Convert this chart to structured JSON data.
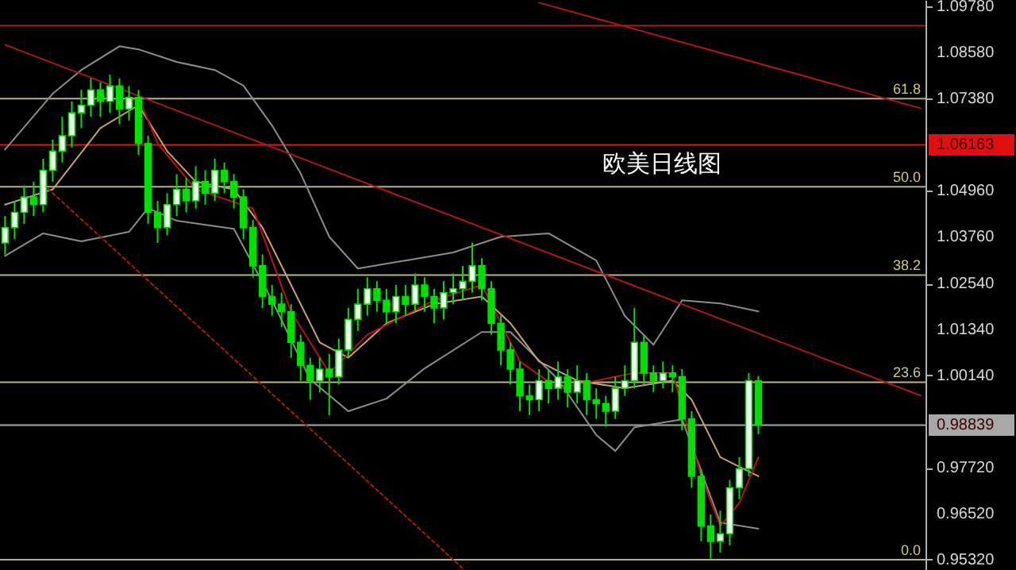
{
  "chart_data": {
    "type": "candlestick",
    "title": "欧美日线图",
    "color": "#00e000",
    "tick_labels": "y",
    "categories": [
      null,
      null,
      null,
      null,
      null,
      null,
      null,
      null,
      null,
      null,
      null,
      null,
      null,
      null,
      null,
      null,
      null,
      null,
      null,
      null,
      null,
      null,
      null,
      null,
      null,
      null,
      null,
      null,
      null,
      null,
      null,
      null,
      null,
      null,
      null,
      null,
      null,
      null,
      null,
      null,
      null,
      null,
      null,
      null,
      null,
      null,
      null,
      null,
      null,
      null,
      null,
      null,
      null,
      null,
      null,
      null,
      null,
      null,
      null,
      null,
      null,
      null,
      null,
      null,
      null,
      null,
      null,
      null,
      null,
      null,
      null,
      null,
      null,
      null,
      null,
      null,
      null,
      null,
      null,
      null,
      null,
      null,
      null,
      null,
      null,
      null,
      null,
      null,
      null,
      null,
      null,
      null,
      null,
      null,
      null,
      null,
      null
    ],
    "ohlc": [
      [
        1.036,
        1.043,
        1.033,
        1.04
      ],
      [
        1.04,
        1.047,
        1.037,
        1.044
      ],
      [
        1.044,
        1.051,
        1.041,
        1.048
      ],
      [
        1.048,
        1.052,
        1.043,
        1.046
      ],
      [
        1.046,
        1.058,
        1.044,
        1.055
      ],
      [
        1.055,
        1.063,
        1.052,
        1.06
      ],
      [
        1.06,
        1.069,
        1.057,
        1.064
      ],
      [
        1.064,
        1.073,
        1.061,
        1.07
      ],
      [
        1.07,
        1.076,
        1.066,
        1.072
      ],
      [
        1.072,
        1.079,
        1.069,
        1.076
      ],
      [
        1.076,
        1.078,
        1.069,
        1.073
      ],
      [
        1.073,
        1.08,
        1.07,
        1.077
      ],
      [
        1.077,
        1.079,
        1.067,
        1.071
      ],
      [
        1.071,
        1.077,
        1.068,
        1.074
      ],
      [
        1.074,
        1.076,
        1.059,
        1.062
      ],
      [
        1.062,
        1.064,
        1.041,
        1.044
      ],
      [
        1.044,
        1.047,
        1.036,
        1.04
      ],
      [
        1.04,
        1.049,
        1.038,
        1.046
      ],
      [
        1.046,
        1.054,
        1.043,
        1.05
      ],
      [
        1.05,
        1.053,
        1.044,
        1.047
      ],
      [
        1.047,
        1.056,
        1.045,
        1.052
      ],
      [
        1.052,
        1.055,
        1.046,
        1.049
      ],
      [
        1.049,
        1.058,
        1.047,
        1.055
      ],
      [
        1.055,
        1.057,
        1.049,
        1.052
      ],
      [
        1.052,
        1.054,
        1.045,
        1.048
      ],
      [
        1.048,
        1.05,
        1.037,
        1.04
      ],
      [
        1.04,
        1.042,
        1.027,
        1.03
      ],
      [
        1.03,
        1.033,
        1.019,
        1.022
      ],
      [
        1.022,
        1.025,
        1.017,
        1.02
      ],
      [
        1.02,
        1.023,
        1.014,
        1.018
      ],
      [
        1.018,
        1.02,
        1.006,
        1.01
      ],
      [
        1.01,
        1.012,
        1.0,
        1.004
      ],
      [
        1.004,
        1.006,
        0.995,
        1.0
      ],
      [
        1.0,
        1.006,
        0.997,
        1.003
      ],
      [
        1.003,
        1.007,
        0.991,
        1.001
      ],
      [
        1.001,
        1.011,
        0.999,
        1.008
      ],
      [
        1.008,
        1.019,
        1.006,
        1.016
      ],
      [
        1.016,
        1.024,
        1.013,
        1.02
      ],
      [
        1.02,
        1.027,
        1.017,
        1.024
      ],
      [
        1.024,
        1.026,
        1.018,
        1.021
      ],
      [
        1.021,
        1.024,
        1.015,
        1.018
      ],
      [
        1.018,
        1.025,
        1.015,
        1.022
      ],
      [
        1.022,
        1.025,
        1.017,
        1.02
      ],
      [
        1.02,
        1.028,
        1.018,
        1.025
      ],
      [
        1.025,
        1.027,
        1.018,
        1.022
      ],
      [
        1.022,
        1.024,
        1.015,
        1.019
      ],
      [
        1.019,
        1.026,
        1.016,
        1.023
      ],
      [
        1.023,
        1.028,
        1.02,
        1.024
      ],
      [
        1.024,
        1.03,
        1.021,
        1.026
      ],
      [
        1.026,
        1.036,
        1.023,
        1.03
      ],
      [
        1.03,
        1.032,
        1.021,
        1.024
      ],
      [
        1.024,
        1.026,
        1.012,
        1.015
      ],
      [
        1.015,
        1.017,
        1.004,
        1.008
      ],
      [
        1.008,
        1.01,
        0.999,
        1.003
      ],
      [
        1.003,
        1.005,
        0.992,
        0.996
      ],
      [
        0.996,
        0.999,
        0.991,
        0.995
      ],
      [
        0.995,
        1.003,
        0.992,
        1.0
      ],
      [
        1.0,
        1.003,
        0.994,
        0.998
      ],
      [
        0.998,
        1.005,
        0.995,
        1.001
      ],
      [
        1.001,
        1.003,
        0.993,
        0.997
      ],
      [
        0.997,
        1.004,
        0.994,
        1.0
      ],
      [
        1.0,
        1.002,
        0.991,
        0.995
      ],
      [
        0.995,
        0.998,
        0.99,
        0.994
      ],
      [
        0.994,
        0.996,
        0.988,
        0.992
      ],
      [
        0.992,
        1.001,
        0.99,
        0.998
      ],
      [
        0.998,
        1.004,
        0.996,
        1.0
      ],
      [
        1.0,
        1.019,
        0.998,
        1.01
      ],
      [
        1.01,
        1.012,
        0.999,
        1.002
      ],
      [
        1.002,
        1.004,
        0.997,
        1.0
      ],
      [
        1.0,
        1.005,
        0.998,
        1.002
      ],
      [
        1.002,
        1.004,
        0.997,
        1.001
      ],
      [
        1.001,
        1.003,
        0.987,
        0.99
      ],
      [
        0.99,
        0.992,
        0.972,
        0.975
      ],
      [
        0.975,
        0.977,
        0.958,
        0.962
      ],
      [
        0.962,
        0.965,
        0.9535,
        0.958
      ],
      [
        0.958,
        0.966,
        0.955,
        0.96
      ],
      [
        0.96,
        0.974,
        0.957,
        0.972
      ],
      [
        0.972,
        0.98,
        0.969,
        0.977
      ],
      [
        0.977,
        1.002,
        0.975,
        1.0
      ],
      [
        1.0,
        1.0012,
        0.986,
        0.98839
      ],
      null,
      null,
      null,
      null,
      null,
      null,
      null,
      null,
      null,
      null,
      null,
      null,
      null,
      null,
      null,
      null,
      null
    ],
    "series": [
      {
        "type": "line",
        "color": "#8c8c8c",
        "values": [
          1.0604,
          null,
          null,
          null,
          null,
          1.075,
          null,
          null,
          1.0812,
          null,
          null,
          null,
          1.0874,
          null,
          1.0866,
          null,
          null,
          null,
          1.0833,
          null,
          null,
          null,
          1.0812,
          null,
          null,
          1.0771,
          null,
          null,
          1.0667,
          null,
          null,
          1.0542,
          null,
          null,
          1.0376,
          null,
          null,
          1.0293,
          null,
          null,
          null,
          null,
          1.0314,
          null,
          null,
          null,
          null,
          1.0335,
          null,
          null,
          null,
          null,
          1.0376,
          null,
          null,
          null,
          null,
          1.0385,
          null,
          null,
          null,
          null,
          1.0314,
          null,
          null,
          1.0169,
          null,
          null,
          1.0094,
          null,
          null,
          1.021,
          null,
          null,
          null,
          1.0202,
          null,
          null,
          null,
          1.0181,
          null,
          null,
          null,
          null,
          null,
          null,
          null,
          null,
          null,
          null,
          null,
          null,
          null,
          null,
          null,
          null,
          null
        ]
      },
      {
        "type": "line",
        "color": "#8c8c8c",
        "values": [
          1.0326,
          null,
          null,
          null,
          1.0385,
          null,
          null,
          null,
          1.0364,
          null,
          null,
          null,
          null,
          1.0389,
          null,
          1.0451,
          null,
          null,
          1.0418,
          null,
          null,
          null,
          null,
          null,
          1.0397,
          null,
          null,
          null,
          1.021,
          null,
          null,
          null,
          1.0003,
          null,
          null,
          null,
          0.992,
          null,
          null,
          null,
          0.9953,
          null,
          null,
          null,
          1.0032,
          null,
          null,
          null,
          null,
          null,
          1.0127,
          null,
          null,
          1.0127,
          null,
          null,
          null,
          null,
          1.0003,
          null,
          null,
          null,
          0.9858,
          null,
          0.9816,
          null,
          0.9878,
          null,
          null,
          null,
          null,
          0.9899,
          null,
          null,
          null,
          0.9629,
          null,
          null,
          null,
          0.9613,
          null,
          null,
          null,
          null,
          null,
          null,
          null,
          null,
          null,
          null,
          null,
          null,
          null,
          null,
          null,
          null,
          null
        ]
      },
      {
        "type": "line",
        "color": "#c8a070",
        "values": [
          1.046,
          null,
          null,
          null,
          null,
          1.05,
          null,
          null,
          null,
          null,
          1.066,
          null,
          null,
          null,
          1.072,
          null,
          null,
          1.06,
          null,
          null,
          1.052,
          null,
          null,
          null,
          1.05,
          null,
          null,
          1.04,
          null,
          null,
          1.025,
          null,
          null,
          1.01,
          null,
          null,
          1.006,
          null,
          null,
          null,
          1.015,
          null,
          null,
          null,
          null,
          1.02,
          null,
          null,
          null,
          null,
          1.022,
          null,
          null,
          1.015,
          null,
          null,
          1.005,
          null,
          null,
          null,
          1.0,
          null,
          null,
          null,
          null,
          0.998,
          null,
          null,
          null,
          null,
          1.0,
          null,
          0.995,
          null,
          null,
          0.98,
          null,
          null,
          null,
          0.975,
          null,
          null,
          null,
          null,
          null,
          null,
          null,
          null,
          null,
          null,
          null,
          null,
          null,
          null,
          null,
          null,
          null
        ]
      },
      {
        "type": "line",
        "color": "#c01010",
        "values": [
          null,
          null,
          null,
          null,
          null,
          null,
          null,
          null,
          null,
          null,
          null,
          null,
          null,
          null,
          1.074,
          null,
          1.062,
          null,
          null,
          null,
          1.05,
          null,
          null,
          null,
          null,
          null,
          1.045,
          null,
          null,
          null,
          1.018,
          null,
          null,
          null,
          1.002,
          null,
          null,
          null,
          1.012,
          null,
          null,
          null,
          null,
          null,
          null,
          1.021,
          null,
          null,
          null,
          null,
          1.025,
          null,
          null,
          null,
          1.005,
          null,
          null,
          null,
          0.998,
          null,
          null,
          null,
          null,
          null,
          null,
          null,
          1.002,
          null,
          null,
          null,
          1.002,
          null,
          null,
          0.975,
          null,
          0.962,
          null,
          0.968,
          null,
          0.98,
          null,
          null,
          null,
          null,
          null,
          null,
          null,
          null,
          null,
          null,
          null,
          null,
          null,
          null,
          null,
          null,
          null
        ]
      },
      {
        "type": "line",
        "color": "#b01818",
        "values": [
          1.0878,
          null,
          null,
          null,
          null,
          null,
          null,
          null,
          null,
          null,
          null,
          null,
          null,
          null,
          null,
          null,
          null,
          null,
          null,
          null,
          null,
          null,
          null,
          null,
          null,
          null,
          null,
          null,
          null,
          null,
          null,
          null,
          null,
          null,
          null,
          null,
          null,
          null,
          null,
          null,
          null,
          null,
          null,
          null,
          null,
          null,
          null,
          null,
          null,
          null,
          null,
          null,
          null,
          null,
          null,
          null,
          null,
          null,
          null,
          null,
          null,
          null,
          null,
          null,
          null,
          null,
          null,
          null,
          null,
          null,
          null,
          null,
          null,
          null,
          null,
          null,
          null,
          null,
          null,
          null,
          null,
          null,
          null,
          null,
          null,
          null,
          null,
          null,
          null,
          null,
          null,
          null,
          null,
          null,
          null,
          null,
          0.9961
        ]
      },
      {
        "type": "line",
        "color": "#b01818",
        "values": [
          null,
          null,
          null,
          null,
          null,
          null,
          null,
          null,
          null,
          null,
          null,
          null,
          null,
          null,
          null,
          null,
          null,
          null,
          null,
          null,
          null,
          null,
          null,
          null,
          null,
          null,
          null,
          null,
          null,
          null,
          null,
          null,
          null,
          null,
          null,
          null,
          null,
          null,
          null,
          null,
          null,
          null,
          null,
          null,
          null,
          null,
          null,
          null,
          null,
          null,
          null,
          null,
          null,
          null,
          null,
          null,
          1.0988,
          null,
          null,
          null,
          null,
          null,
          null,
          null,
          null,
          null,
          null,
          null,
          null,
          null,
          null,
          null,
          null,
          null,
          null,
          null,
          null,
          null,
          null,
          null,
          null,
          null,
          null,
          null,
          null,
          null,
          null,
          null,
          null,
          null,
          null,
          null,
          null,
          null,
          null,
          null,
          1.0712
        ]
      },
      {
        "type": "line",
        "color": "#b01818",
        "line_style": "dotted",
        "values": [
          null,
          null,
          null,
          null,
          1.0513,
          null,
          null,
          null,
          null,
          null,
          null,
          null,
          null,
          null,
          null,
          null,
          null,
          null,
          null,
          null,
          null,
          null,
          null,
          null,
          null,
          null,
          null,
          null,
          null,
          null,
          null,
          null,
          null,
          null,
          null,
          null,
          null,
          null,
          null,
          null,
          null,
          null,
          null,
          null,
          null,
          null,
          null,
          null,
          0.9509,
          null,
          null,
          null,
          null,
          null,
          null,
          null,
          null,
          null,
          null,
          null,
          null,
          null,
          null,
          null,
          null,
          null,
          null,
          null,
          null,
          null,
          null,
          null,
          null,
          null,
          null,
          null,
          null,
          null,
          null,
          null,
          null,
          null,
          null,
          null,
          null,
          null,
          null,
          null,
          null,
          null,
          null,
          null,
          null,
          null,
          null,
          null,
          null
        ]
      }
    ],
    "ref_lines": [
      {
        "axis": "y",
        "value": 1.0928,
        "color": "#9a1c1c"
      },
      {
        "axis": "y",
        "value": 1.0737,
        "color": "#b8b47c"
      },
      {
        "axis": "y",
        "value": 1.06163,
        "color": "#e01010"
      },
      {
        "axis": "y",
        "value": 1.0507,
        "color": "#b8b47c"
      },
      {
        "axis": "y",
        "value": 1.0276,
        "color": "#b8b47c"
      },
      {
        "axis": "y",
        "value": 0.9996,
        "color": "#b8b47c"
      },
      {
        "axis": "y",
        "value": 0.98839,
        "color": "#a8a8a8"
      },
      {
        "axis": "y",
        "value": 0.9532,
        "color": "#b8b47c"
      }
    ],
    "annotations": [
      {
        "text": "61.8",
        "y": 1.0737
      },
      {
        "text": "50.0",
        "y": 1.0507
      },
      {
        "text": "38.2",
        "y": 1.0276
      },
      {
        "text": "23.6",
        "y": 0.9996
      },
      {
        "text": "0.0",
        "y": 0.9532
      }
    ],
    "ylim": [
      0.9505,
      1.0995
    ],
    "yticks": [
      {
        "value": 1.0978,
        "label": "1.09780"
      },
      {
        "value": 1.0858,
        "label": "1.08580"
      },
      {
        "value": 1.0738,
        "label": "1.07380"
      },
      {
        "value": 1.06163,
        "label": "1.06163"
      },
      {
        "value": 1.0496,
        "label": "1.04960"
      },
      {
        "value": 1.0376,
        "label": "1.03760"
      },
      {
        "value": 1.0254,
        "label": "1.02540"
      },
      {
        "value": 1.0134,
        "label": "1.01340"
      },
      {
        "value": 1.0014,
        "label": "1.00140"
      },
      {
        "value": 0.98839,
        "label": "0.98839"
      },
      {
        "value": 0.9772,
        "label": "0.97720"
      },
      {
        "value": 0.9652,
        "label": "0.96520"
      },
      {
        "value": 0.9532,
        "label": "0.95320"
      }
    ]
  }
}
